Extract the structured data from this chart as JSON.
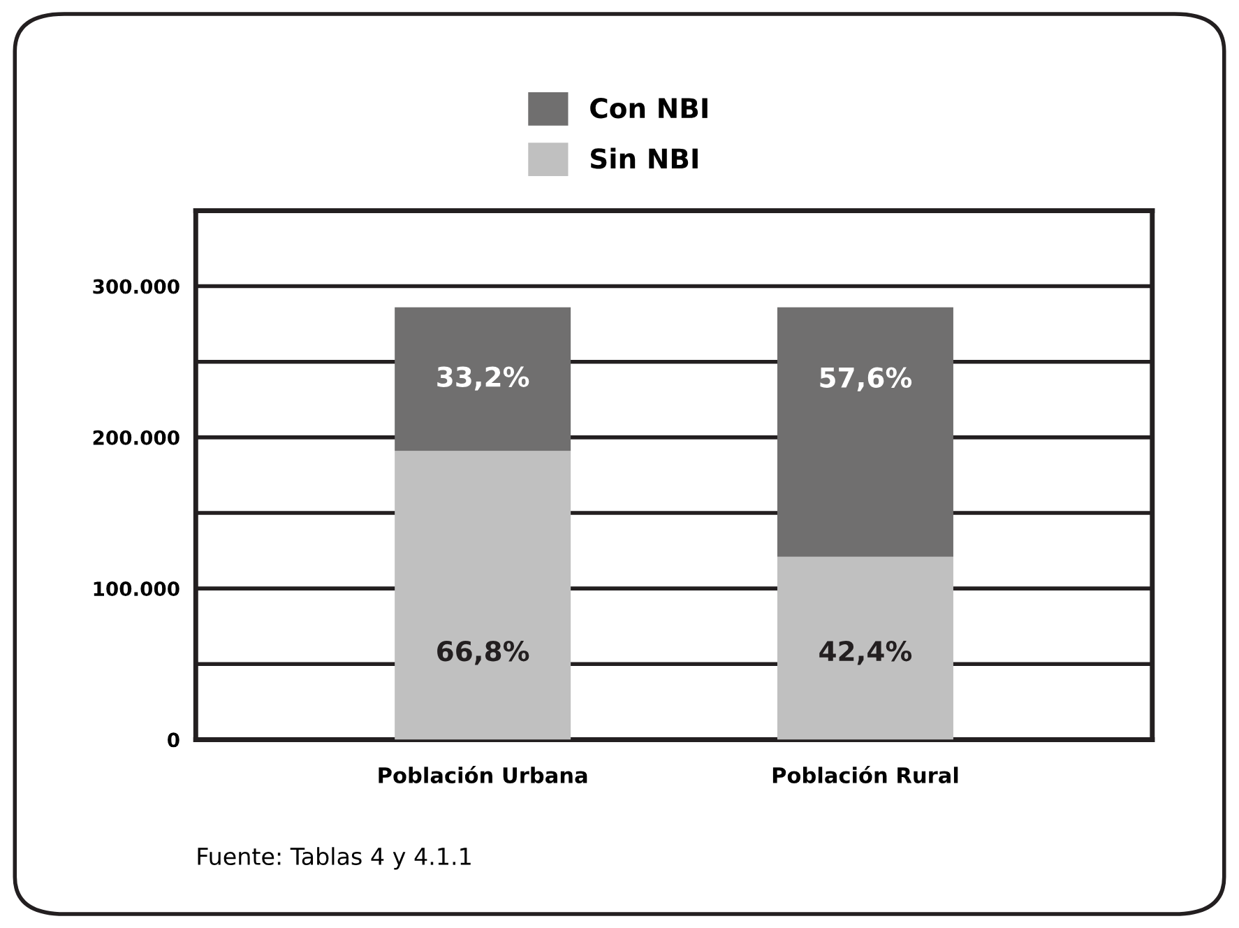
{
  "chart_data": {
    "type": "bar",
    "stacked": true,
    "categories": [
      "Población Urbana",
      "Población Rural"
    ],
    "series": [
      {
        "name": "Sin NBI",
        "color": "#c0c0c0",
        "values": [
          191000,
          121000
        ]
      },
      {
        "name": "Con NBI",
        "color": "#706f6f",
        "values": [
          95000,
          165000
        ]
      }
    ],
    "ylim": [
      0,
      350000
    ],
    "yticks": [
      {
        "value": 0,
        "label": "0"
      },
      {
        "value": 50000,
        "label": null
      },
      {
        "value": 100000,
        "label": "100.000"
      },
      {
        "value": 150000,
        "label": null
      },
      {
        "value": 200000,
        "label": "200.000"
      },
      {
        "value": 250000,
        "label": null
      },
      {
        "value": 300000,
        "label": "300.000"
      }
    ],
    "grid": "y",
    "legend": "top",
    "annotations": [
      "33,2%",
      "66,8%",
      "57,6%",
      "42,4%",
      "Fuente: Tablas 4 y 4.1.1"
    ]
  }
}
